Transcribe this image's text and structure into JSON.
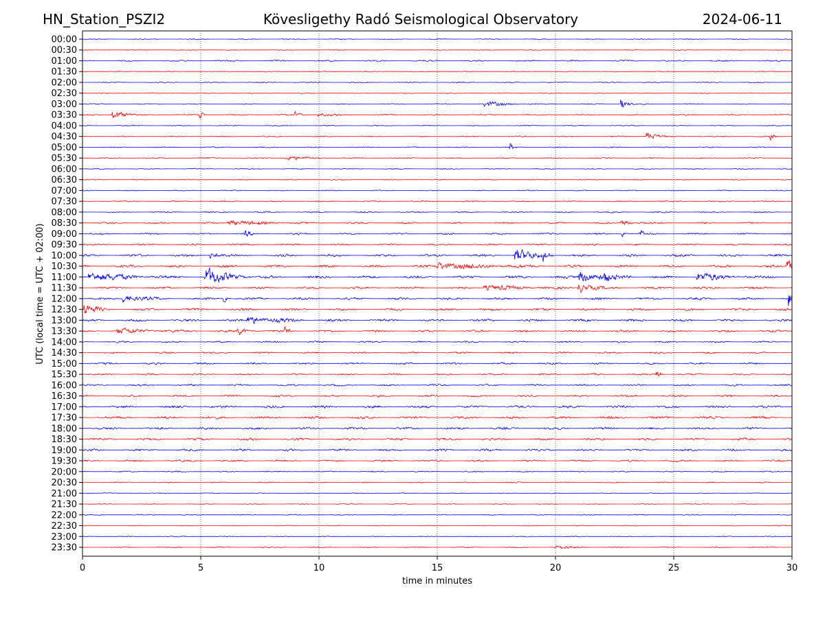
{
  "chart_data": {
    "type": "line",
    "title_left": "HN_Station_PSZI2",
    "title": "Kövesligethy Radó Seismological Observatory",
    "title_right": "2024-06-11",
    "xlabel": "time in minutes",
    "ylabel": "UTC (local time = UTC + 02:00)",
    "xlim": [
      0,
      30
    ],
    "xticks": [
      "0",
      "5",
      "10",
      "15",
      "20",
      "25",
      "30"
    ],
    "xtick_values": [
      0,
      5,
      10,
      15,
      20,
      25,
      30
    ],
    "grid_x": [
      5,
      10,
      15,
      20,
      25
    ],
    "row_labels": [
      "00:00",
      "00:30",
      "01:00",
      "01:30",
      "02:00",
      "02:30",
      "03:00",
      "03:30",
      "04:00",
      "04:30",
      "05:00",
      "05:30",
      "06:00",
      "06:30",
      "07:00",
      "07:30",
      "08:00",
      "08:30",
      "09:00",
      "09:30",
      "10:00",
      "10:30",
      "11:00",
      "11:30",
      "12:00",
      "12:30",
      "13:00",
      "13:30",
      "14:00",
      "14:30",
      "15:00",
      "15:30",
      "16:00",
      "16:30",
      "17:00",
      "17:30",
      "18:00",
      "18:30",
      "19:00",
      "19:30",
      "20:00",
      "20:30",
      "21:00",
      "21:30",
      "22:00",
      "22:30",
      "23:00",
      "23:30"
    ],
    "colors": [
      "#0000ff",
      "#ff0000"
    ],
    "noise_level": [
      0.6,
      0.6,
      0.9,
      0.5,
      0.6,
      0.5,
      0.6,
      0.8,
      0.6,
      0.7,
      0.7,
      0.7,
      0.6,
      0.6,
      0.6,
      0.7,
      0.8,
      1.0,
      1.0,
      1.0,
      1.4,
      1.5,
      1.6,
      1.4,
      1.4,
      1.5,
      1.5,
      1.3,
      1.0,
      1.1,
      1.2,
      1.0,
      1.1,
      1.2,
      1.5,
      1.5,
      1.4,
      1.4,
      1.3,
      1.1,
      0.8,
      0.7,
      0.5,
      0.5,
      0.6,
      0.5,
      0.5,
      0.6
    ],
    "events": [
      {
        "row": 6,
        "minute": 17.0,
        "amplitude": 3,
        "duration": 1.5
      },
      {
        "row": 6,
        "minute": 22.8,
        "amplitude": 6,
        "duration": 0.3
      },
      {
        "row": 7,
        "minute": 1.3,
        "amplitude": 6,
        "duration": 0.6
      },
      {
        "row": 7,
        "minute": 5.0,
        "amplitude": 5,
        "duration": 0.1
      },
      {
        "row": 7,
        "minute": 9.0,
        "amplitude": 3,
        "duration": 0.3
      },
      {
        "row": 7,
        "minute": 10.0,
        "amplitude": 2,
        "duration": 0.6
      },
      {
        "row": 9,
        "minute": 23.9,
        "amplitude": 5,
        "duration": 0.5
      },
      {
        "row": 9,
        "minute": 29.1,
        "amplitude": 4,
        "duration": 0.1
      },
      {
        "row": 10,
        "minute": 18.1,
        "amplitude": 5,
        "duration": 0.1
      },
      {
        "row": 11,
        "minute": 8.6,
        "amplitude": 3,
        "duration": 1.0
      },
      {
        "row": 17,
        "minute": 6.2,
        "amplitude": 3,
        "duration": 2.0
      },
      {
        "row": 17,
        "minute": 22.8,
        "amplitude": 3,
        "duration": 0.8
      },
      {
        "row": 18,
        "minute": 6.9,
        "amplitude": 4,
        "duration": 0.2
      },
      {
        "row": 18,
        "minute": 22.8,
        "amplitude": 5,
        "duration": 0.1
      },
      {
        "row": 18,
        "minute": 23.6,
        "amplitude": 5,
        "duration": 0.1
      },
      {
        "row": 20,
        "minute": 5.4,
        "amplitude": 4,
        "duration": 0.5
      },
      {
        "row": 20,
        "minute": 18.3,
        "amplitude": 8,
        "duration": 1.0
      },
      {
        "row": 20,
        "minute": 19.5,
        "amplitude": 6,
        "duration": 0.2
      },
      {
        "row": 21,
        "minute": 15.0,
        "amplitude": 4,
        "duration": 3.0
      },
      {
        "row": 21,
        "minute": 29.8,
        "amplitude": 8,
        "duration": 0.5
      },
      {
        "row": 22,
        "minute": 0.3,
        "amplitude": 6,
        "duration": 2.0
      },
      {
        "row": 22,
        "minute": 5.2,
        "amplitude": 11,
        "duration": 1.2
      },
      {
        "row": 22,
        "minute": 21.0,
        "amplitude": 7,
        "duration": 1.5
      },
      {
        "row": 22,
        "minute": 22.1,
        "amplitude": 6,
        "duration": 0.1
      },
      {
        "row": 22,
        "minute": 26.0,
        "amplitude": 5,
        "duration": 1.5
      },
      {
        "row": 23,
        "minute": 17.0,
        "amplitude": 3,
        "duration": 2.0
      },
      {
        "row": 23,
        "minute": 21.0,
        "amplitude": 6,
        "duration": 0.7
      },
      {
        "row": 24,
        "minute": 1.7,
        "amplitude": 5,
        "duration": 1.0
      },
      {
        "row": 24,
        "minute": 6.0,
        "amplitude": 5,
        "duration": 0.1
      },
      {
        "row": 24,
        "minute": 29.9,
        "amplitude": 10,
        "duration": 0.3
      },
      {
        "row": 25,
        "minute": 0.1,
        "amplitude": 7,
        "duration": 0.5
      },
      {
        "row": 26,
        "minute": 7.0,
        "amplitude": 5,
        "duration": 1.5
      },
      {
        "row": 27,
        "minute": 1.5,
        "amplitude": 3,
        "duration": 2.0
      },
      {
        "row": 27,
        "minute": 6.6,
        "amplitude": 4,
        "duration": 0.5
      },
      {
        "row": 27,
        "minute": 8.6,
        "amplitude": 5,
        "duration": 0.1
      },
      {
        "row": 31,
        "minute": 24.3,
        "amplitude": 6,
        "duration": 0.1
      },
      {
        "row": 47,
        "minute": 20.0,
        "amplitude": 2,
        "duration": 1.0
      }
    ]
  }
}
